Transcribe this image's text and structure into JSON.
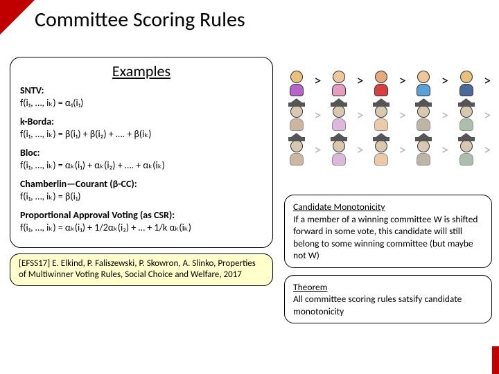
{
  "title": "Committee Scoring Rules",
  "examples": {
    "heading": "Examples",
    "rules": [
      {
        "name": "SNTV:",
        "formula": "f(i₁, …, iₖ) = α₁(i₁)"
      },
      {
        "name": "k-Borda:",
        "formula": "f(i₁, …, iₖ) = β(i₁) + β(i₂) + …. + β(iₖ)"
      },
      {
        "name": "Bloc:",
        "formula": "f(i₁, …, iₖ) = αₖ(i₁) + αₖ(i₂) + …. + αₖ(iₖ)"
      },
      {
        "name": "Chamberlin—Courant (β-CC):",
        "formula": "f(i₁, …, iₖ) = β(i₁)"
      },
      {
        "name": "Proportional Approval Voting (as CSR):",
        "formula": "f(i₁, …, iₖ) = αₖ(i₁) + 1/2αₖ(i₂) + … + 1/k αₖ(iₖ)"
      }
    ]
  },
  "citation": "[EFSS17] E. Elkind, P. Faliszewski, P. Skowron, A. Slinko, Properties of Multiwinner Voting Rules, Social Choice and Welfare, 2017",
  "voters": [
    {
      "head": "#e6c27a",
      "body": "#b565c9"
    },
    {
      "head": "#f0c79a",
      "body": "#e89cc0"
    },
    {
      "head": "#e6a97a",
      "body": "#d84040"
    },
    {
      "head": "#f0c79a",
      "body": "#5aa0d8"
    },
    {
      "head": "#e6c27a",
      "body": "#4a6a9a"
    }
  ],
  "candidates": [
    {
      "body": "#a67c52"
    },
    {
      "body": "#c080c0"
    },
    {
      "body": "#e0a060"
    },
    {
      "body": "#8a7a5a"
    },
    {
      "body": "#6a8a6a"
    }
  ],
  "gt_black": "#000000",
  "gt_grey": "#b0b0b0",
  "monotonicity": {
    "hd": "Candidate Monotonicity",
    "body": "If a member of a winning committee W is shifted forward in some vote, this candidate will still belong to some winning committee (but maybe not W)"
  },
  "theorem": {
    "hd": "Theorem",
    "body": "All committee scoring rules satsify candidate monotonicity"
  }
}
